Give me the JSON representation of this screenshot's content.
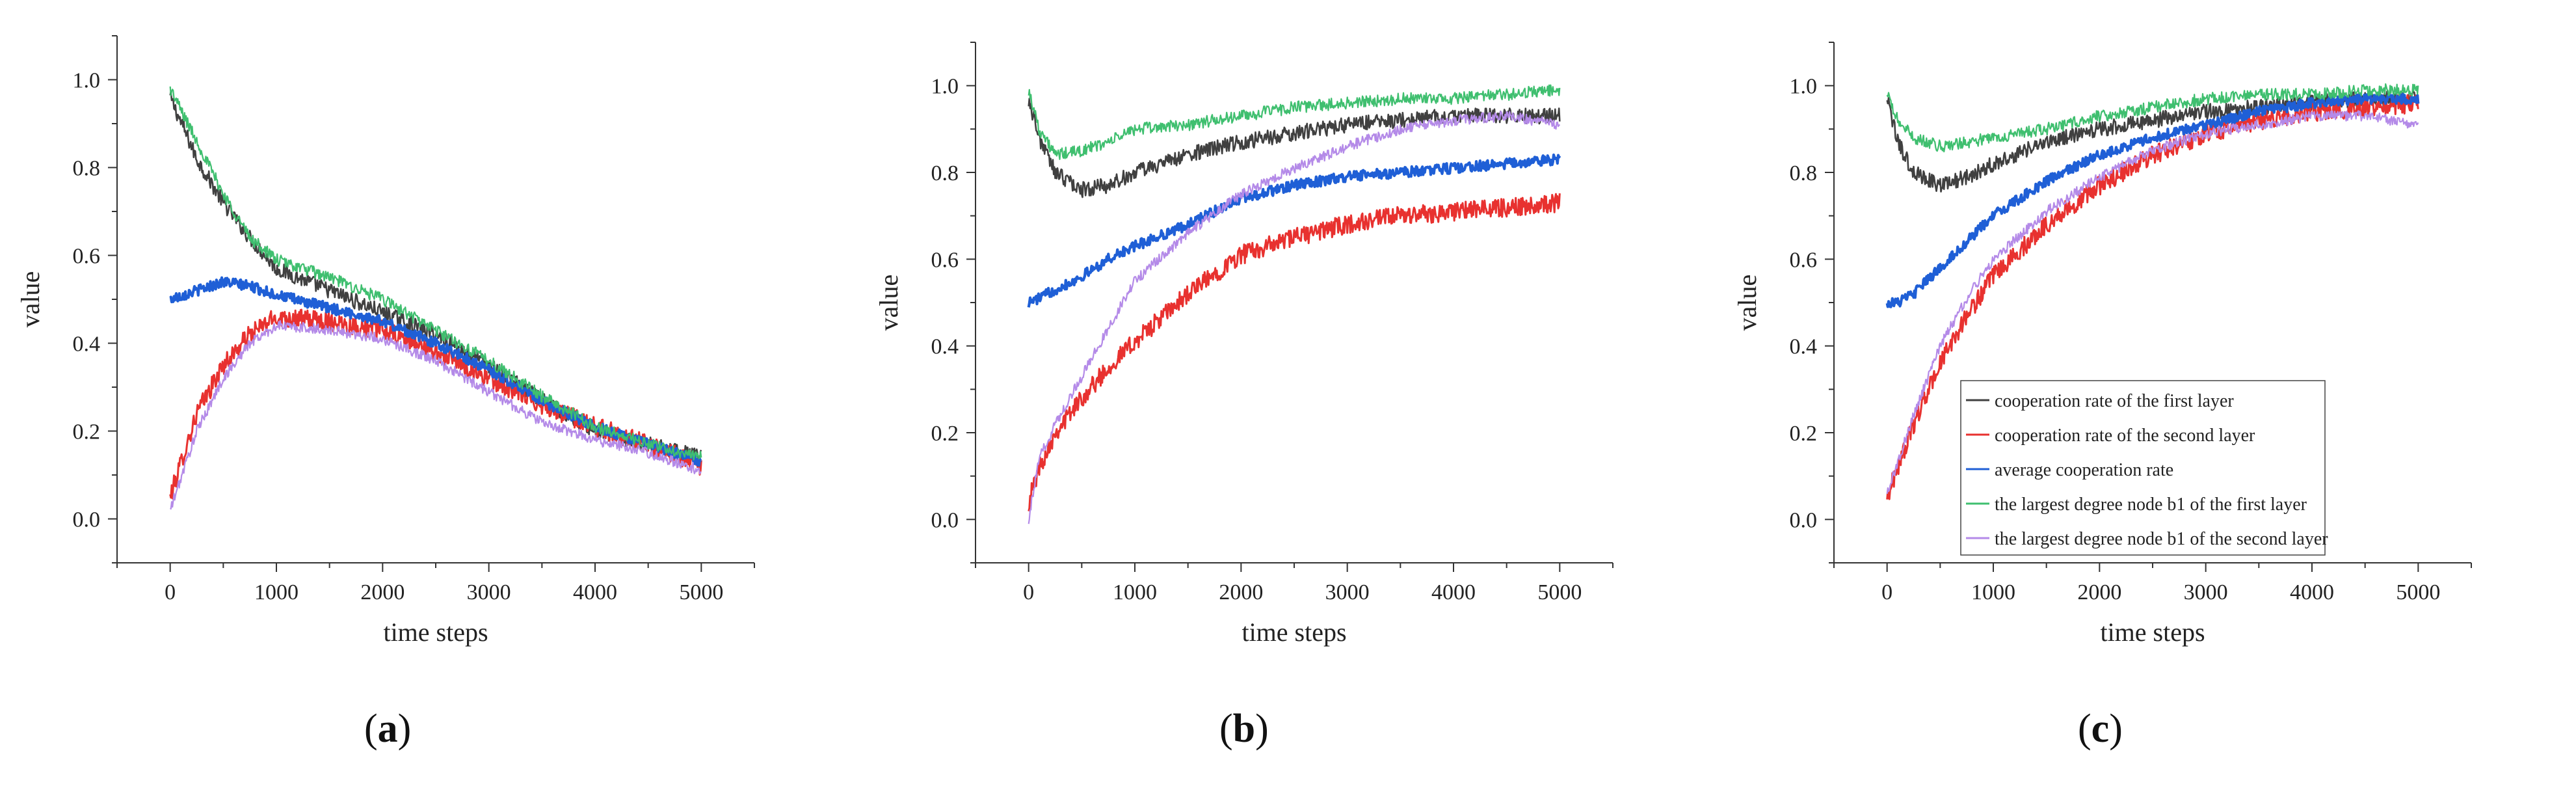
{
  "chart_data": [
    {
      "type": "line",
      "panel_label": "a",
      "xlabel": "time steps",
      "ylabel": "value",
      "xlim": [
        -500,
        5500
      ],
      "ylim": [
        -0.1,
        1.1
      ],
      "xticks": [
        0,
        1000,
        2000,
        3000,
        4000,
        5000
      ],
      "yticks": [
        0.0,
        0.2,
        0.4,
        0.6,
        0.8,
        1.0
      ],
      "grid": false,
      "legend": null,
      "series": [
        {
          "name": "cooperation rate of the first layer",
          "color": "#404040",
          "x": [
            0,
            250,
            500,
            750,
            1000,
            1500,
            2000,
            2500,
            3000,
            3500,
            4000,
            4500,
            5000
          ],
          "y": [
            0.96,
            0.82,
            0.72,
            0.64,
            0.57,
            0.52,
            0.47,
            0.42,
            0.35,
            0.27,
            0.2,
            0.17,
            0.14
          ]
        },
        {
          "name": "cooperation rate of the second layer",
          "color": "#e8312f",
          "x": [
            0,
            250,
            500,
            750,
            1000,
            1500,
            2000,
            2500,
            3000,
            3500,
            4000,
            4500,
            5000
          ],
          "y": [
            0.05,
            0.24,
            0.35,
            0.42,
            0.46,
            0.45,
            0.43,
            0.38,
            0.32,
            0.26,
            0.21,
            0.17,
            0.12
          ]
        },
        {
          "name": "average cooperation rate",
          "color": "#1f5fd6",
          "x": [
            0,
            250,
            500,
            750,
            1000,
            1500,
            2000,
            2500,
            3000,
            3500,
            4000,
            4500,
            5000
          ],
          "y": [
            0.5,
            0.52,
            0.54,
            0.53,
            0.51,
            0.48,
            0.45,
            0.4,
            0.34,
            0.27,
            0.21,
            0.17,
            0.13
          ]
        },
        {
          "name": "the largest degree node b1 of the first layer",
          "color": "#3fbf6f",
          "x": [
            0,
            250,
            500,
            750,
            1000,
            1500,
            2000,
            2500,
            3000,
            3500,
            4000,
            4500,
            5000
          ],
          "y": [
            0.98,
            0.86,
            0.74,
            0.64,
            0.59,
            0.55,
            0.5,
            0.43,
            0.36,
            0.28,
            0.21,
            0.17,
            0.14
          ]
        },
        {
          "name": "the largest degree node b1 of the second layer",
          "color": "#b48ae8",
          "x": [
            0,
            250,
            500,
            750,
            1000,
            1500,
            2000,
            2500,
            3000,
            3500,
            4000,
            4500,
            5000
          ],
          "y": [
            0.02,
            0.2,
            0.32,
            0.4,
            0.44,
            0.43,
            0.41,
            0.36,
            0.29,
            0.22,
            0.18,
            0.15,
            0.11
          ]
        }
      ]
    },
    {
      "type": "line",
      "panel_label": "b",
      "xlabel": "time steps",
      "ylabel": "value",
      "xlim": [
        -500,
        5500
      ],
      "ylim": [
        -0.1,
        1.1
      ],
      "xticks": [
        0,
        1000,
        2000,
        3000,
        4000,
        5000
      ],
      "yticks": [
        0.0,
        0.2,
        0.4,
        0.6,
        0.8,
        1.0
      ],
      "grid": false,
      "legend": null,
      "series": [
        {
          "name": "cooperation rate of the first layer",
          "color": "#404040",
          "x": [
            0,
            100,
            250,
            500,
            750,
            1000,
            1500,
            2000,
            2500,
            3000,
            3500,
            4000,
            4500,
            5000
          ],
          "y": [
            0.97,
            0.88,
            0.8,
            0.76,
            0.77,
            0.8,
            0.84,
            0.87,
            0.89,
            0.91,
            0.92,
            0.93,
            0.93,
            0.93
          ]
        },
        {
          "name": "cooperation rate of the second layer",
          "color": "#e8312f",
          "x": [
            0,
            100,
            250,
            500,
            750,
            1000,
            1500,
            2000,
            2500,
            3000,
            3500,
            4000,
            4500,
            5000
          ],
          "y": [
            0.04,
            0.12,
            0.2,
            0.28,
            0.35,
            0.41,
            0.52,
            0.61,
            0.65,
            0.68,
            0.7,
            0.71,
            0.72,
            0.73
          ]
        },
        {
          "name": "average cooperation rate",
          "color": "#1f5fd6",
          "x": [
            0,
            100,
            250,
            500,
            750,
            1000,
            1500,
            2000,
            2500,
            3000,
            3500,
            4000,
            4500,
            5000
          ],
          "y": [
            0.5,
            0.51,
            0.53,
            0.56,
            0.6,
            0.63,
            0.68,
            0.74,
            0.77,
            0.79,
            0.8,
            0.81,
            0.82,
            0.83
          ]
        },
        {
          "name": "the largest degree node b1 of the first layer",
          "color": "#3fbf6f",
          "x": [
            0,
            100,
            250,
            500,
            750,
            1000,
            1500,
            2000,
            2500,
            3000,
            3500,
            4000,
            4500,
            5000
          ],
          "y": [
            0.99,
            0.9,
            0.84,
            0.85,
            0.87,
            0.9,
            0.91,
            0.93,
            0.95,
            0.96,
            0.97,
            0.97,
            0.98,
            0.99
          ]
        },
        {
          "name": "the largest degree node b1 of the second layer",
          "color": "#b48ae8",
          "x": [
            0,
            100,
            250,
            500,
            750,
            1000,
            1500,
            2000,
            2500,
            3000,
            3500,
            4000,
            4500,
            5000
          ],
          "y": [
            0.0,
            0.14,
            0.22,
            0.33,
            0.44,
            0.55,
            0.66,
            0.75,
            0.81,
            0.86,
            0.9,
            0.92,
            0.93,
            0.91
          ]
        }
      ]
    },
    {
      "type": "line",
      "panel_label": "c",
      "xlabel": "time steps",
      "ylabel": "value",
      "xlim": [
        -500,
        5500
      ],
      "ylim": [
        -0.1,
        1.1
      ],
      "xticks": [
        0,
        1000,
        2000,
        3000,
        4000,
        5000
      ],
      "yticks": [
        0.0,
        0.2,
        0.4,
        0.6,
        0.8,
        1.0
      ],
      "grid": false,
      "legend": "bottom-right",
      "series": [
        {
          "name": "cooperation rate of the first layer",
          "color": "#404040",
          "x": [
            0,
            100,
            250,
            500,
            750,
            1000,
            1500,
            2000,
            2500,
            3000,
            3500,
            4000,
            4500,
            5000
          ],
          "y": [
            0.97,
            0.87,
            0.8,
            0.77,
            0.79,
            0.82,
            0.87,
            0.9,
            0.92,
            0.94,
            0.95,
            0.96,
            0.97,
            0.97
          ]
        },
        {
          "name": "cooperation rate of the second layer",
          "color": "#e8312f",
          "x": [
            0,
            100,
            250,
            500,
            750,
            1000,
            1500,
            2000,
            2500,
            3000,
            3500,
            4000,
            4500,
            5000
          ],
          "y": [
            0.05,
            0.12,
            0.22,
            0.36,
            0.47,
            0.56,
            0.68,
            0.77,
            0.84,
            0.89,
            0.92,
            0.94,
            0.95,
            0.96
          ]
        },
        {
          "name": "average cooperation rate",
          "color": "#1f5fd6",
          "x": [
            0,
            100,
            250,
            500,
            750,
            1000,
            1500,
            2000,
            2500,
            3000,
            3500,
            4000,
            4500,
            5000
          ],
          "y": [
            0.5,
            0.5,
            0.52,
            0.58,
            0.64,
            0.7,
            0.78,
            0.84,
            0.88,
            0.91,
            0.94,
            0.96,
            0.97,
            0.97
          ]
        },
        {
          "name": "the largest degree node b1 of the first layer",
          "color": "#3fbf6f",
          "x": [
            0,
            100,
            250,
            500,
            750,
            1000,
            1500,
            2000,
            2500,
            3000,
            3500,
            4000,
            4500,
            5000
          ],
          "y": [
            0.98,
            0.92,
            0.88,
            0.86,
            0.87,
            0.88,
            0.9,
            0.93,
            0.95,
            0.97,
            0.98,
            0.98,
            0.99,
            0.99
          ]
        },
        {
          "name": "the largest degree node b1 of the second layer",
          "color": "#b48ae8",
          "x": [
            0,
            100,
            250,
            500,
            750,
            1000,
            1500,
            2000,
            2500,
            3000,
            3500,
            4000,
            4500,
            5000
          ],
          "y": [
            0.06,
            0.13,
            0.24,
            0.4,
            0.51,
            0.6,
            0.71,
            0.79,
            0.85,
            0.89,
            0.91,
            0.93,
            0.93,
            0.91
          ]
        }
      ]
    }
  ]
}
